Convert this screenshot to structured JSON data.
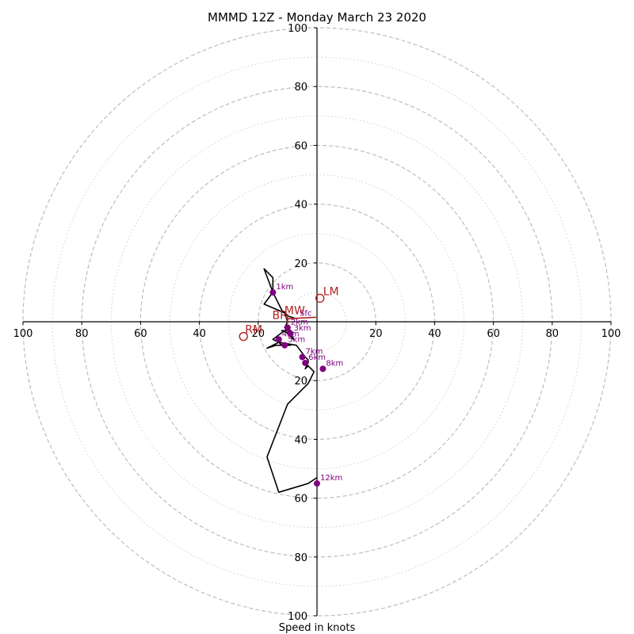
{
  "chart_data": {
    "type": "hodograph",
    "title": "MMMD 12Z - Monday March 23 2020",
    "xlabel": "Speed in knots",
    "ylabel": "",
    "range": [
      -100,
      100
    ],
    "ring_major": [
      20,
      40,
      60,
      80,
      100
    ],
    "ring_minor": [
      10,
      30,
      50,
      70,
      90
    ],
    "x_tick_labels": [
      "100",
      "80",
      "60",
      "40",
      "20",
      "20",
      "40",
      "60",
      "80",
      "100"
    ],
    "y_tick_labels": [
      "100",
      "80",
      "60",
      "40",
      "20",
      "20",
      "40",
      "60",
      "80",
      "100"
    ],
    "grid": true,
    "colors": {
      "trace": "#000000",
      "height_marker": "#800080",
      "motion": "#b22222",
      "grid": "#bdbdbd"
    },
    "trace": {
      "u": [
        -7,
        -10,
        -12,
        -15,
        -18,
        -15,
        -15,
        -18,
        -11,
        -10,
        -11,
        -9,
        -12,
        -9,
        -8,
        -11,
        -15,
        -13,
        -12,
        -9,
        -14,
        -17,
        -13,
        -7,
        -4,
        -3,
        -3,
        -4,
        -3,
        -1,
        -3,
        -10,
        -17,
        -13,
        -3,
        0
      ],
      "v": [
        1,
        2,
        4,
        10,
        18,
        15,
        10,
        6,
        3,
        0,
        -2,
        -3,
        -3,
        -4,
        -6,
        -3,
        -6,
        -7,
        -8,
        -8,
        -8,
        -9,
        -7,
        -8,
        -12,
        -13,
        -14,
        -16,
        -15,
        -17,
        -21,
        -28,
        -46,
        -58,
        -55,
        -53
      ]
    },
    "height_markers": [
      {
        "label": "Sfc",
        "u": -7,
        "v": 1
      },
      {
        "label": "1km",
        "u": -15,
        "v": 10
      },
      {
        "label": "2km",
        "u": -10,
        "v": -2
      },
      {
        "label": "3km",
        "u": -9,
        "v": -4
      },
      {
        "label": "4km",
        "u": -13,
        "v": -6
      },
      {
        "label": "5km",
        "u": -11,
        "v": -8
      },
      {
        "label": "6km",
        "u": -4,
        "v": -14
      },
      {
        "label": "7km",
        "u": -5,
        "v": -12
      },
      {
        "label": "8km",
        "u": 2,
        "v": -16
      },
      {
        "label": "12km",
        "u": 0,
        "v": -55
      }
    ],
    "storm_motion": [
      {
        "label": "LM",
        "u": 1,
        "v": 8,
        "marker": "open-circle"
      },
      {
        "label": "RM",
        "u": -25,
        "v": -5,
        "marker": "open-circle"
      },
      {
        "label": "MW",
        "u": -10,
        "v": 1,
        "marker": "none"
      },
      {
        "label": "BR",
        "u": -12,
        "v": 1,
        "marker": "none"
      }
    ]
  }
}
